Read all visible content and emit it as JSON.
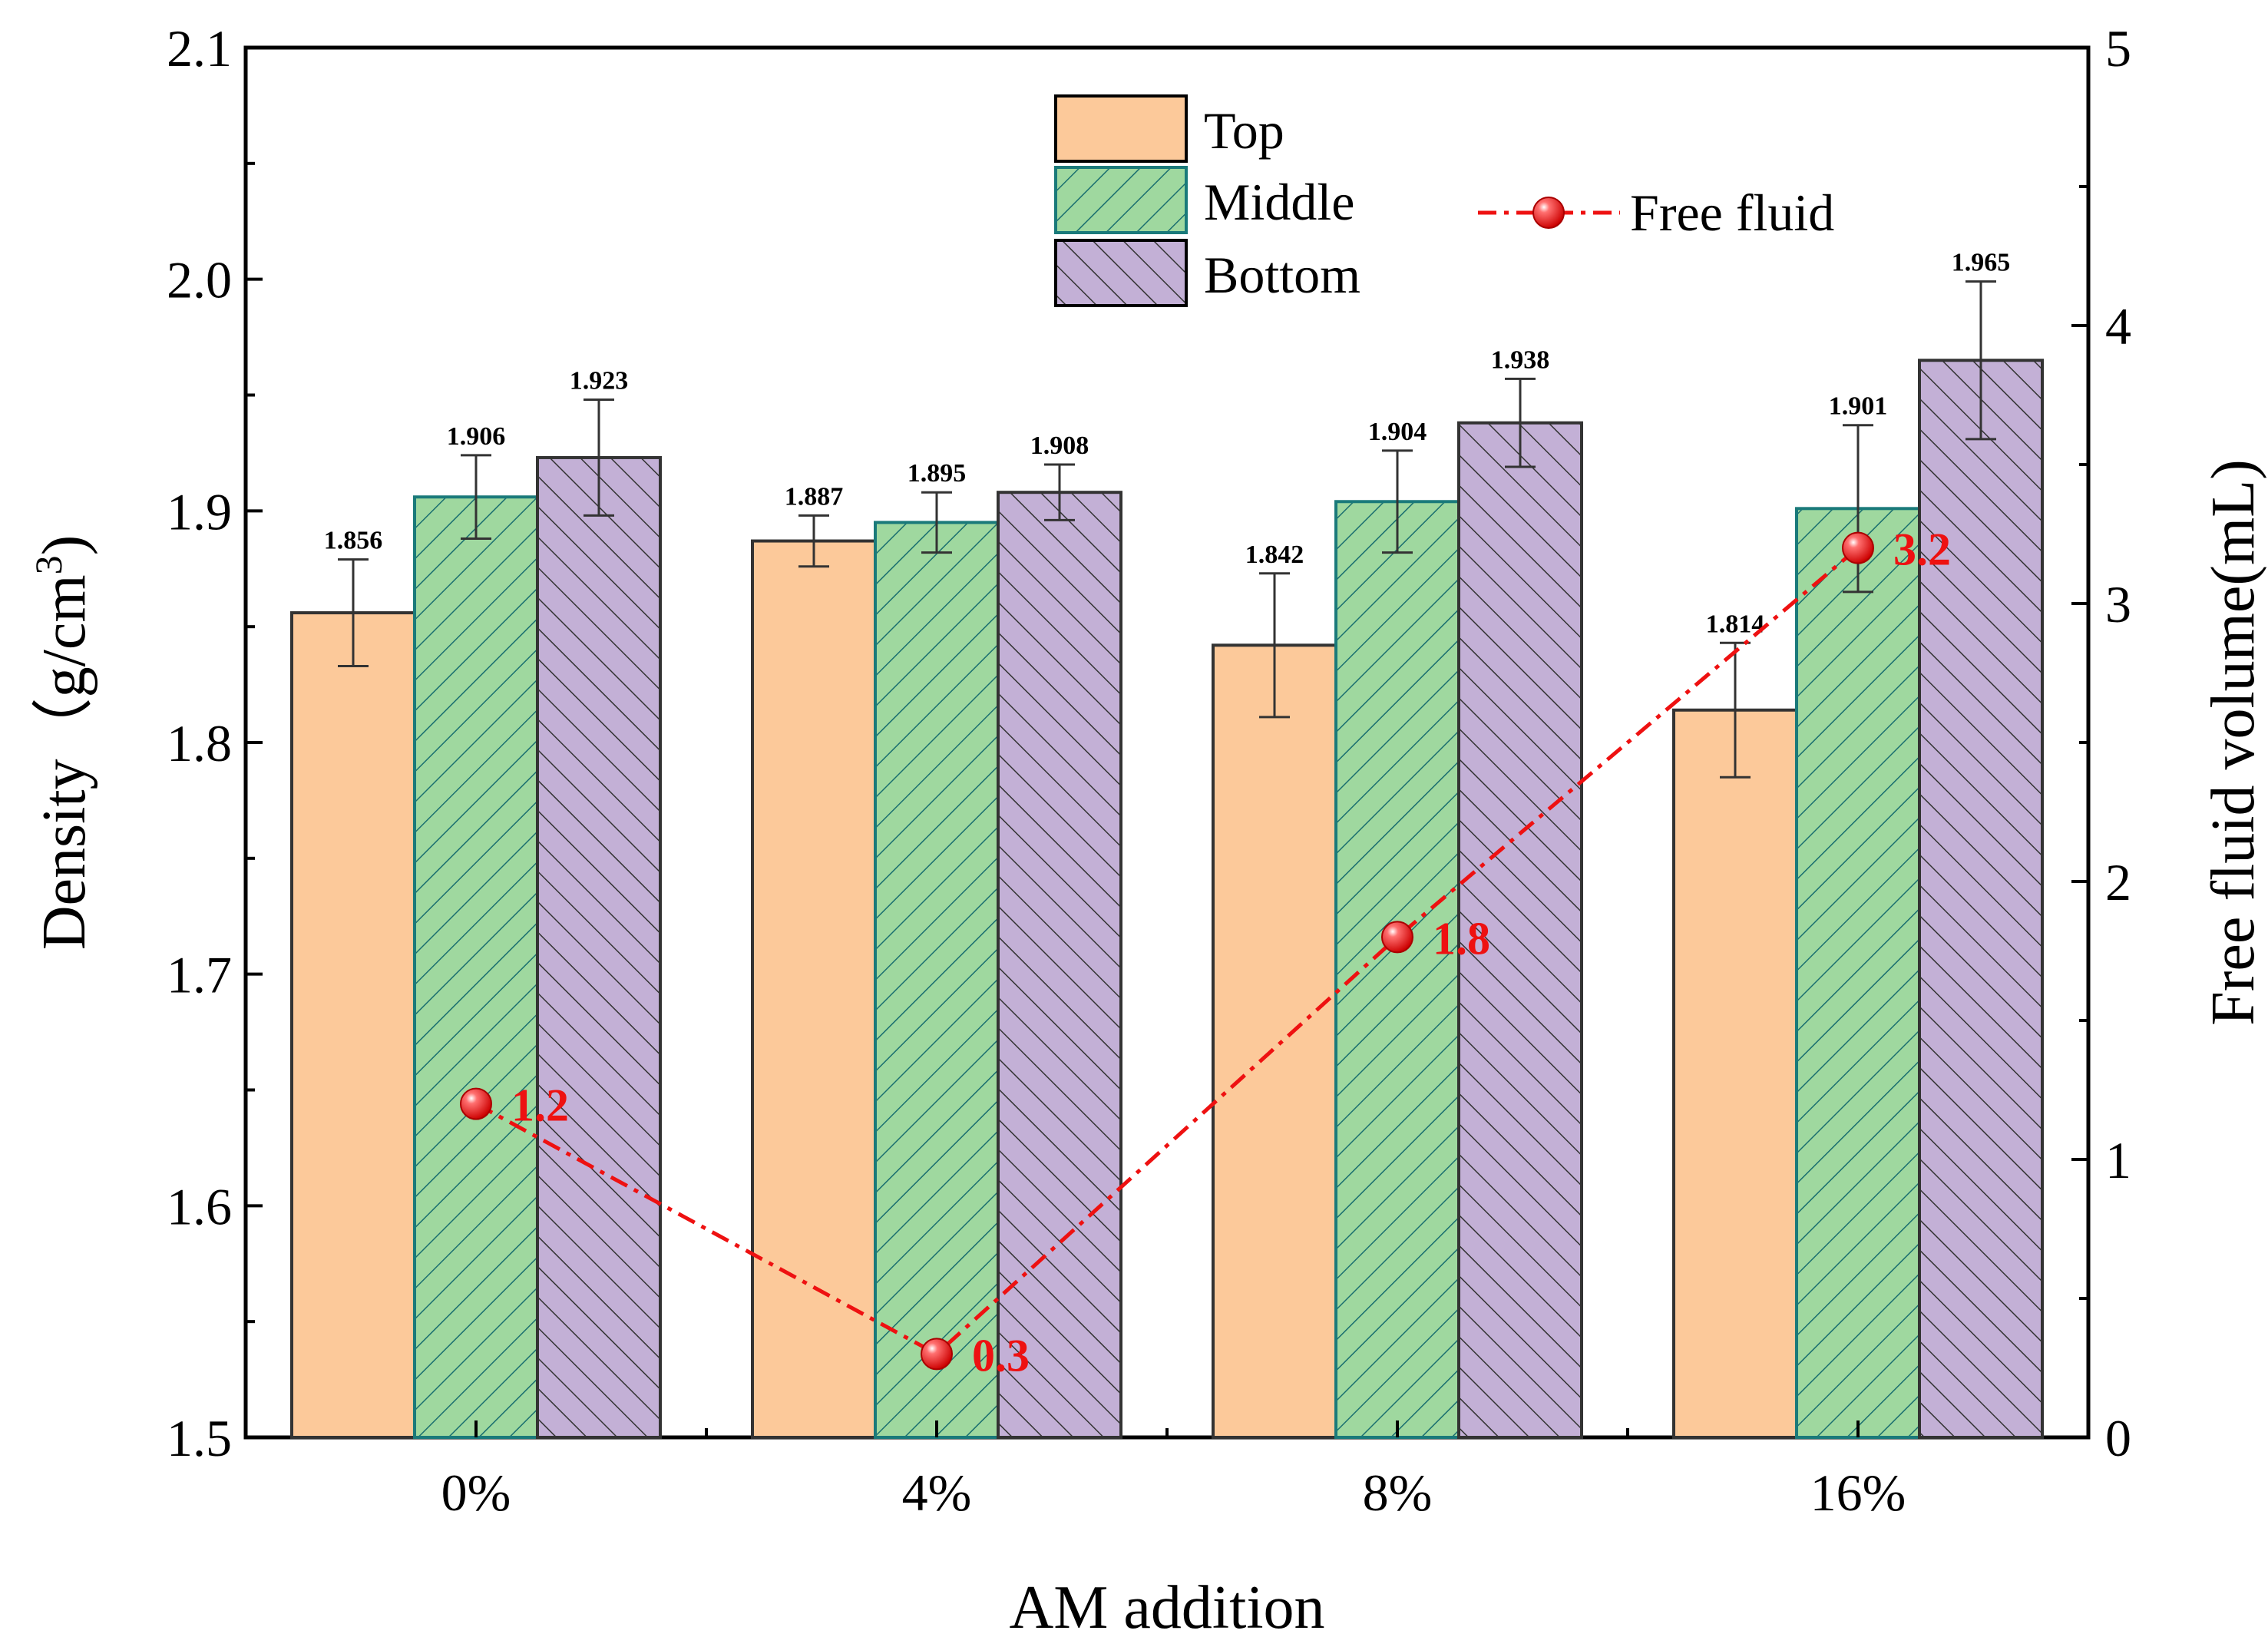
{
  "chart_data": {
    "type": "bar",
    "xlabel": "AM addition",
    "ylabel": "Density（g/cm",
    "ylabel_sup": "3",
    "ylabel_close": ")",
    "y2label": "Free fluid volume(mL)",
    "categories": [
      "0%",
      "4%",
      "8%",
      "16%"
    ],
    "ylim": [
      1.5,
      2.1
    ],
    "y_ticks": [
      "1.5",
      "1.6",
      "1.7",
      "1.8",
      "1.9",
      "2.0",
      "2.1"
    ],
    "y2lim": [
      0,
      5
    ],
    "y2_ticks": [
      "0",
      "1",
      "2",
      "3",
      "4",
      "5"
    ],
    "series": [
      {
        "name": "Top",
        "values": [
          1.856,
          1.887,
          1.842,
          1.814
        ],
        "labels": [
          "1.856",
          "1.887",
          "1.842",
          "1.814"
        ],
        "errors": [
          0.023,
          0.011,
          0.031,
          0.029
        ],
        "fill": "#fcc99a",
        "stroke": "#333333",
        "hatch": "none"
      },
      {
        "name": "Middle",
        "values": [
          1.906,
          1.895,
          1.904,
          1.901
        ],
        "labels": [
          "1.906",
          "1.895",
          "1.904",
          "1.901"
        ],
        "errors": [
          0.018,
          0.013,
          0.022,
          0.036
        ],
        "fill": "#9fd89f",
        "stroke": "#1a7a7a",
        "hatch": "forward"
      },
      {
        "name": "Bottom",
        "values": [
          1.923,
          1.908,
          1.938,
          1.965
        ],
        "labels": [
          "1.923",
          "1.908",
          "1.938",
          "1.965"
        ],
        "errors": [
          0.025,
          0.012,
          0.019,
          0.034
        ],
        "fill": "#c3b0d6",
        "stroke": "#333333",
        "hatch": "back"
      }
    ],
    "line_series": {
      "name": "Free fluid",
      "axis": "right",
      "values": [
        1.2,
        0.3,
        1.8,
        3.2
      ],
      "labels": [
        "1.2",
        "0.3",
        "1.8",
        "3.2"
      ],
      "color": "#ee1111",
      "style": "dash-dot"
    },
    "legend_position": "top-center"
  }
}
